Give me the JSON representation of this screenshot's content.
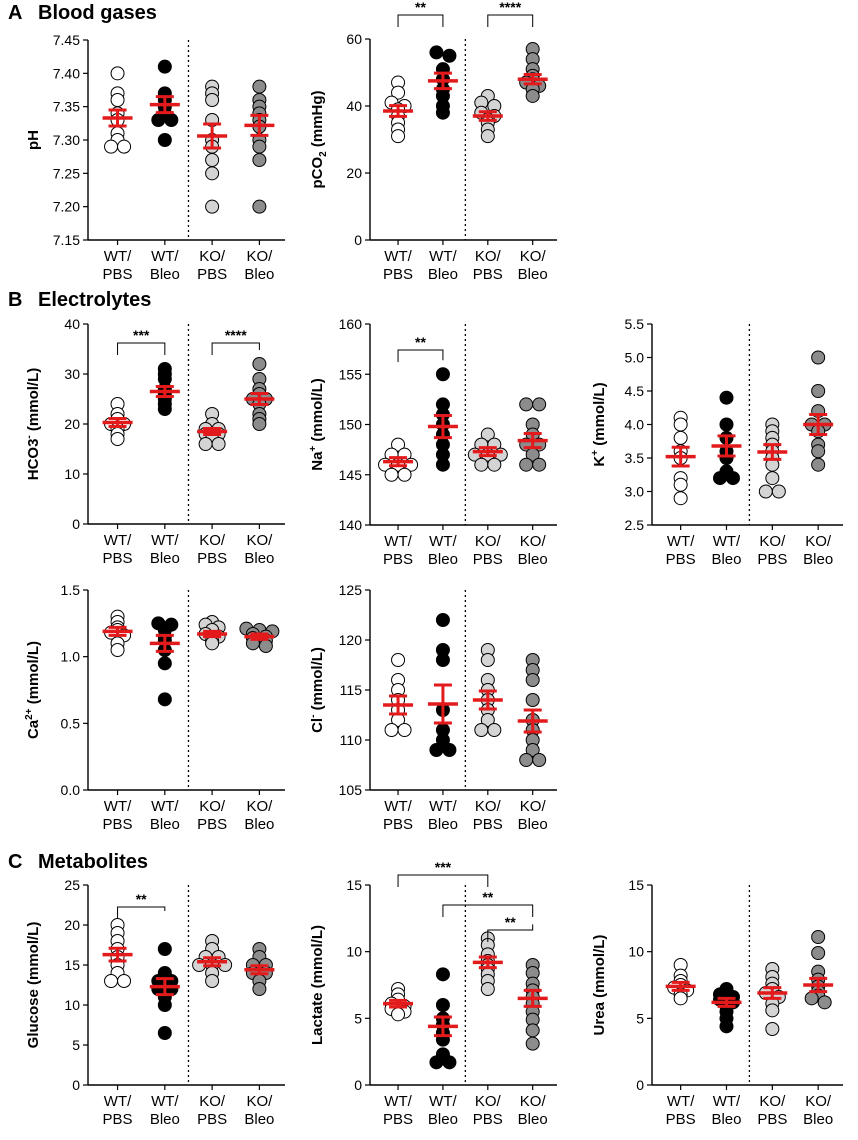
{
  "sections": [
    {
      "letter": "A",
      "title": "Blood gases"
    },
    {
      "letter": "B",
      "title": "Electrolytes"
    },
    {
      "letter": "C",
      "title": "Metabolites"
    }
  ],
  "colors": {
    "mean": "#e31a1c",
    "wt_pbs": "#ffffff",
    "wt_bleo": "#000000",
    "ko_pbs": "#d4d4d4",
    "ko_bleo": "#8c8c8c"
  },
  "chart_data": [
    {
      "id": "ph",
      "type": "scatter",
      "ylabel": "pH",
      "ylim": [
        7.15,
        7.45
      ],
      "yticks": [
        "7.15",
        "7.20",
        "7.25",
        "7.30",
        "7.35",
        "7.40",
        "7.45"
      ],
      "categories": [
        "WT/\nPBS",
        "WT/\nBleo",
        "KO/\nPBS",
        "KO/\nBleo"
      ],
      "series": [
        {
          "name": "WT/PBS",
          "values": [
            7.4,
            7.37,
            7.36,
            7.34,
            7.33,
            7.31,
            7.3,
            7.29,
            7.29
          ],
          "mean": 7.333,
          "sem": 0.012
        },
        {
          "name": "WT/Bleo",
          "values": [
            7.41,
            7.37,
            7.36,
            7.35,
            7.34,
            7.33,
            7.33,
            7.3
          ],
          "mean": 7.353,
          "sem": 0.012
        },
        {
          "name": "KO/PBS",
          "values": [
            7.38,
            7.37,
            7.36,
            7.33,
            7.3,
            7.29,
            7.27,
            7.25,
            7.2
          ],
          "mean": 7.306,
          "sem": 0.018
        },
        {
          "name": "KO/Bleo",
          "values": [
            7.38,
            7.36,
            7.35,
            7.34,
            7.33,
            7.32,
            7.3,
            7.29,
            7.27,
            7.2
          ],
          "mean": 7.322,
          "sem": 0.015
        }
      ],
      "significance": []
    },
    {
      "id": "pco2",
      "type": "scatter",
      "ylabel": "pCO2 (mmHg)",
      "ylim": [
        0,
        60
      ],
      "yticks": [
        "0",
        "20",
        "40",
        "60"
      ],
      "categories": [
        "WT/\nPBS",
        "WT/\nBleo",
        "KO/\nPBS",
        "KO/\nBleo"
      ],
      "series": [
        {
          "name": "WT/PBS",
          "values": [
            47,
            44,
            41,
            40,
            39,
            37,
            35,
            33,
            31
          ],
          "mean": 38.5,
          "sem": 1.6
        },
        {
          "name": "WT/Bleo",
          "values": [
            56,
            55,
            51,
            48,
            45,
            43,
            40,
            38
          ],
          "mean": 47.5,
          "sem": 2.3
        },
        {
          "name": "KO/PBS",
          "values": [
            43,
            41,
            40,
            38,
            37,
            36,
            35,
            33,
            31
          ],
          "mean": 37.0,
          "sem": 1.3
        },
        {
          "name": "KO/Bleo",
          "values": [
            57,
            54,
            51,
            49,
            48,
            47,
            46,
            45,
            43
          ],
          "mean": 48.0,
          "sem": 1.4
        }
      ],
      "significance": [
        {
          "from": 0,
          "to": 1,
          "label": "**"
        },
        {
          "from": 2,
          "to": 3,
          "label": "****"
        }
      ]
    },
    {
      "id": "hco3",
      "type": "scatter",
      "ylabel": "HCO3- (mmol/L)",
      "ylim": [
        0,
        40
      ],
      "yticks": [
        "0",
        "10",
        "20",
        "30",
        "40"
      ],
      "categories": [
        "WT/\nPBS",
        "WT/\nBleo",
        "KO/\nPBS",
        "KO/\nBleo"
      ],
      "series": [
        {
          "name": "WT/PBS",
          "values": [
            24,
            22,
            21,
            20,
            20,
            19,
            18,
            17
          ],
          "mean": 20.3,
          "sem": 0.8
        },
        {
          "name": "WT/Bleo",
          "values": [
            31,
            30,
            29,
            27,
            26,
            25,
            24,
            23
          ],
          "mean": 26.5,
          "sem": 1.0
        },
        {
          "name": "KO/PBS",
          "values": [
            22,
            20,
            19,
            19,
            18,
            18,
            17,
            16,
            16
          ],
          "mean": 18.5,
          "sem": 0.6
        },
        {
          "name": "KO/Bleo",
          "values": [
            32,
            29,
            27,
            26,
            25,
            25,
            24,
            22,
            21,
            20
          ],
          "mean": 25.0,
          "sem": 1.1
        }
      ],
      "significance": [
        {
          "from": 0,
          "to": 1,
          "label": "***"
        },
        {
          "from": 2,
          "to": 3,
          "label": "****"
        }
      ]
    },
    {
      "id": "na",
      "type": "scatter",
      "ylabel": "Na+ (mmol/L)",
      "ylim": [
        140,
        160
      ],
      "yticks": [
        "140",
        "145",
        "150",
        "155",
        "160"
      ],
      "categories": [
        "WT/\nPBS",
        "WT/\nBleo",
        "KO/\nPBS",
        "KO/\nBleo"
      ],
      "series": [
        {
          "name": "WT/PBS",
          "values": [
            148,
            147,
            147,
            146,
            146,
            146,
            145,
            145
          ],
          "mean": 146.3,
          "sem": 0.4
        },
        {
          "name": "WT/Bleo",
          "values": [
            155,
            152,
            151,
            150,
            149,
            148,
            147,
            146
          ],
          "mean": 149.8,
          "sem": 1.1
        },
        {
          "name": "KO/PBS",
          "values": [
            149,
            148,
            148,
            147,
            147,
            147,
            146,
            146
          ],
          "mean": 147.3,
          "sem": 0.4
        },
        {
          "name": "KO/Bleo",
          "values": [
            152,
            152,
            150,
            149,
            148,
            148,
            147,
            146,
            146
          ],
          "mean": 148.4,
          "sem": 0.7
        }
      ],
      "significance": [
        {
          "from": 0,
          "to": 1,
          "label": "**"
        }
      ]
    },
    {
      "id": "k",
      "type": "scatter",
      "ylabel": "K+ (mmol/L)",
      "ylim": [
        2.5,
        5.5
      ],
      "yticks": [
        "2.5",
        "3.0",
        "3.5",
        "4.0",
        "4.5",
        "5.0",
        "5.5"
      ],
      "categories": [
        "WT/\nPBS",
        "WT/\nBleo",
        "KO/\nPBS",
        "KO/\nBleo"
      ],
      "series": [
        {
          "name": "WT/PBS",
          "values": [
            4.1,
            4.0,
            3.8,
            3.6,
            3.5,
            3.2,
            3.1,
            2.9
          ],
          "mean": 3.52,
          "sem": 0.14
        },
        {
          "name": "WT/Bleo",
          "values": [
            4.4,
            4.0,
            3.8,
            3.6,
            3.5,
            3.3,
            3.2,
            3.2
          ],
          "mean": 3.68,
          "sem": 0.15
        },
        {
          "name": "KO/PBS",
          "values": [
            4.0,
            3.9,
            3.8,
            3.7,
            3.6,
            3.5,
            3.4,
            3.2,
            3.0,
            3.0
          ],
          "mean": 3.59,
          "sem": 0.11
        },
        {
          "name": "KO/Bleo",
          "values": [
            5.0,
            4.5,
            4.2,
            4.0,
            4.0,
            3.9,
            3.7,
            3.6,
            3.4
          ],
          "mean": 4.0,
          "sem": 0.15
        }
      ],
      "significance": []
    },
    {
      "id": "ca",
      "type": "scatter",
      "ylabel": "Ca2+ (mmol/L)",
      "ylim": [
        0,
        1.5
      ],
      "yticks": [
        "0.0",
        "0.5",
        "1.0",
        "1.5"
      ],
      "categories": [
        "WT/\nPBS",
        "WT/\nBleo",
        "KO/\nPBS",
        "KO/\nBleo"
      ],
      "series": [
        {
          "name": "WT/PBS",
          "values": [
            1.3,
            1.26,
            1.22,
            1.2,
            1.18,
            1.16,
            1.1,
            1.05
          ],
          "mean": 1.19,
          "sem": 0.03
        },
        {
          "name": "WT/Bleo",
          "values": [
            1.25,
            1.24,
            1.2,
            1.15,
            1.12,
            1.05,
            0.95,
            0.68
          ],
          "mean": 1.1,
          "sem": 0.06
        },
        {
          "name": "KO/PBS",
          "values": [
            1.26,
            1.24,
            1.22,
            1.2,
            1.17,
            1.15,
            1.12,
            1.1
          ],
          "mean": 1.17,
          "sem": 0.02
        },
        {
          "name": "KO/Bleo",
          "values": [
            1.21,
            1.2,
            1.19,
            1.17,
            1.15,
            1.14,
            1.12,
            1.1,
            1.08
          ],
          "mean": 1.15,
          "sem": 0.02
        }
      ],
      "significance": []
    },
    {
      "id": "cl",
      "type": "scatter",
      "ylabel": "Cl- (mmol/L)",
      "ylim": [
        105,
        125
      ],
      "yticks": [
        "105",
        "110",
        "115",
        "120",
        "125"
      ],
      "categories": [
        "WT/\nPBS",
        "WT/\nBleo",
        "KO/\nPBS",
        "KO/\nBleo"
      ],
      "series": [
        {
          "name": "WT/PBS",
          "values": [
            118,
            116,
            115,
            114,
            113,
            112,
            111,
            111
          ],
          "mean": 113.5,
          "sem": 0.9
        },
        {
          "name": "WT/Bleo",
          "values": [
            122,
            119,
            118,
            113,
            111,
            110,
            109,
            109
          ],
          "mean": 113.6,
          "sem": 1.9
        },
        {
          "name": "KO/PBS",
          "values": [
            119,
            118,
            116,
            115,
            114,
            113,
            112,
            111,
            111
          ],
          "mean": 114.0,
          "sem": 0.9
        },
        {
          "name": "KO/Bleo",
          "values": [
            118,
            117,
            116,
            114,
            112,
            111,
            110,
            109,
            108,
            108
          ],
          "mean": 111.9,
          "sem": 1.1
        }
      ],
      "significance": []
    },
    {
      "id": "glucose",
      "type": "scatter",
      "ylabel": "Glucose (mmol/L)",
      "ylim": [
        0,
        25
      ],
      "yticks": [
        "0",
        "5",
        "10",
        "15",
        "20",
        "25"
      ],
      "categories": [
        "WT/\nPBS",
        "WT/\nBleo",
        "KO/\nPBS",
        "KO/\nBleo"
      ],
      "series": [
        {
          "name": "WT/PBS",
          "values": [
            20,
            19,
            18,
            17,
            16,
            15,
            14,
            13,
            13
          ],
          "mean": 16.3,
          "sem": 0.8
        },
        {
          "name": "WT/Bleo",
          "values": [
            17,
            14,
            13,
            13,
            12,
            12,
            11,
            10,
            6.5
          ],
          "mean": 12.3,
          "sem": 1.0
        },
        {
          "name": "KO/PBS",
          "values": [
            18,
            17,
            16,
            16,
            15,
            15,
            15,
            14,
            13
          ],
          "mean": 15.4,
          "sem": 0.5
        },
        {
          "name": "KO/Bleo",
          "values": [
            17,
            16,
            15,
            15,
            14,
            14,
            13,
            12
          ],
          "mean": 14.4,
          "sem": 0.5
        }
      ],
      "significance": [
        {
          "from": 0,
          "to": 1,
          "label": "**"
        }
      ]
    },
    {
      "id": "lactate",
      "type": "scatter",
      "ylabel": "Lactate (mmol/L)",
      "ylim": [
        0,
        15
      ],
      "yticks": [
        "0",
        "5",
        "10",
        "15"
      ],
      "categories": [
        "WT/\nPBS",
        "WT/\nBleo",
        "KO/\nPBS",
        "KO/\nBleo"
      ],
      "series": [
        {
          "name": "WT/PBS",
          "values": [
            7.2,
            6.8,
            6.4,
            6.1,
            5.9,
            5.7,
            5.5,
            5.3
          ],
          "mean": 6.1,
          "sem": 0.25
        },
        {
          "name": "WT/Bleo",
          "values": [
            8.3,
            6.0,
            5.0,
            4.5,
            3.9,
            3.4,
            2.3,
            1.7,
            1.7
          ],
          "mean": 4.4,
          "sem": 0.7
        },
        {
          "name": "KO/PBS",
          "values": [
            11.0,
            10.5,
            9.8,
            9.3,
            9.0,
            8.7,
            8.3,
            7.8,
            7.2
          ],
          "mean": 9.2,
          "sem": 0.4
        },
        {
          "name": "KO/Bleo",
          "values": [
            9.0,
            8.4,
            7.6,
            7.1,
            6.6,
            6.1,
            5.5,
            4.9,
            4.1,
            3.1
          ],
          "mean": 6.5,
          "sem": 0.6
        }
      ],
      "significance": [
        {
          "from": 0,
          "to": 2,
          "label": "***"
        },
        {
          "from": 1,
          "to": 3,
          "label": "**"
        },
        {
          "from": 2,
          "to": 3,
          "label": "**"
        }
      ]
    },
    {
      "id": "urea",
      "type": "scatter",
      "ylabel": "Urea (mmol/L)",
      "ylim": [
        0,
        15
      ],
      "yticks": [
        "0",
        "5",
        "10",
        "15"
      ],
      "categories": [
        "WT/\nPBS",
        "WT/\nBleo",
        "KO/\nPBS",
        "KO/\nBleo"
      ],
      "series": [
        {
          "name": "WT/PBS",
          "values": [
            9.0,
            8.2,
            7.8,
            7.5,
            7.3,
            7.1,
            6.8,
            6.5
          ],
          "mean": 7.4,
          "sem": 0.3
        },
        {
          "name": "WT/Bleo",
          "values": [
            7.2,
            6.8,
            6.6,
            6.4,
            6.2,
            5.9,
            5.5,
            5.0,
            4.4
          ],
          "mean": 6.2,
          "sem": 0.3
        },
        {
          "name": "KO/PBS",
          "values": [
            8.7,
            8.1,
            7.6,
            7.2,
            6.9,
            6.6,
            6.1,
            5.6,
            4.2
          ],
          "mean": 6.9,
          "sem": 0.4
        },
        {
          "name": "KO/Bleo",
          "values": [
            11.1,
            9.9,
            8.5,
            7.9,
            7.4,
            7.0,
            6.7,
            6.5,
            6.2
          ],
          "mean": 7.5,
          "sem": 0.5
        }
      ],
      "significance": []
    }
  ]
}
